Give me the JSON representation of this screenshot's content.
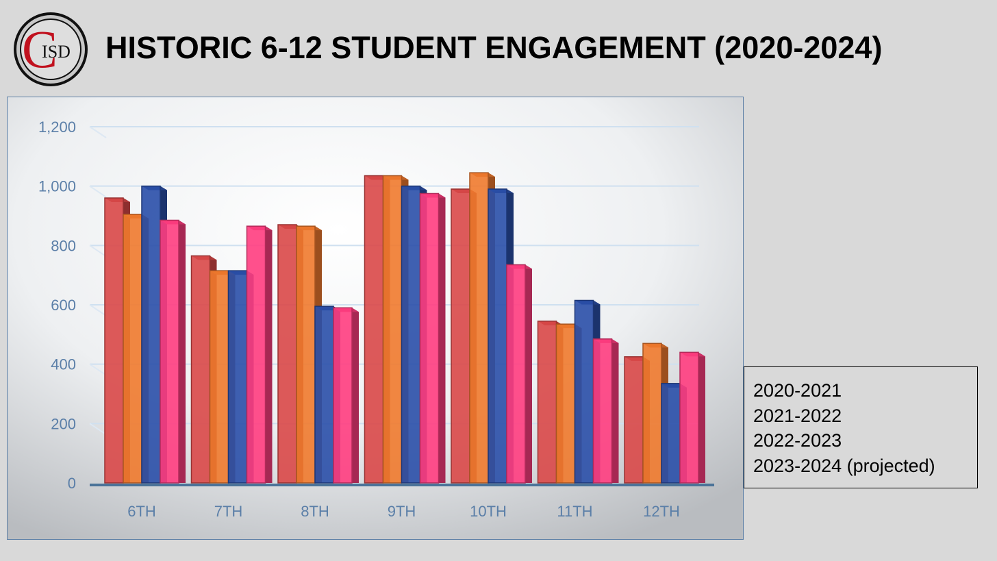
{
  "header": {
    "logo_text": "ISD",
    "logo_letter": "C",
    "title": "HISTORIC 6-12 STUDENT ENGAGEMENT (2020-2024)"
  },
  "legend": {
    "items": [
      "2020-2021",
      "2021-2022",
      "2022-2023",
      "2023-2024 (projected)"
    ]
  },
  "colors": {
    "series": [
      "#d94848",
      "#f07a2e",
      "#2a4fa8",
      "#ff3d80"
    ],
    "axis_text": "#5b7fa8",
    "background": "#d9d9d9"
  },
  "chart_data": {
    "type": "bar",
    "categories": [
      "6TH",
      "7TH",
      "8TH",
      "9TH",
      "10TH",
      "11TH",
      "12TH"
    ],
    "series": [
      {
        "name": "2020-2021",
        "values": [
          960,
          765,
          870,
          1035,
          990,
          545,
          425
        ]
      },
      {
        "name": "2021-2022",
        "values": [
          905,
          715,
          865,
          1035,
          1045,
          535,
          470
        ]
      },
      {
        "name": "2022-2023",
        "values": [
          1000,
          715,
          595,
          1000,
          990,
          615,
          335
        ]
      },
      {
        "name": "2023-2024 (projected)",
        "values": [
          885,
          865,
          590,
          975,
          735,
          485,
          440
        ]
      }
    ],
    "yticks": [
      "0",
      "200",
      "400",
      "600",
      "800",
      "1,000",
      "1,200"
    ],
    "ylim": [
      0,
      1200
    ],
    "grid": true,
    "legend_position": "bottom-right"
  }
}
